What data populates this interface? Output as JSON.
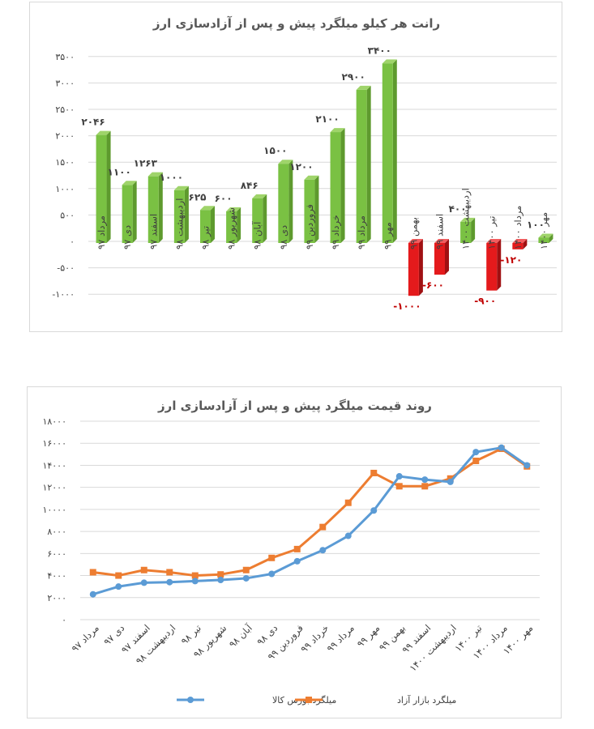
{
  "chart_data": [
    {
      "type": "bar",
      "title": "رانت هر کیلو میلگرد پیش و پس از آزادسازی ارز",
      "categories": [
        "مرداد ۹۷",
        "دی ۹۷",
        "اسفند ۹۷",
        "اردیبهشت ۹۸",
        "تیر ۹۸",
        "شهریور ۹۸",
        "آبان ۹۸",
        "دی ۹۸",
        "فروردین ۹۹",
        "خرداد ۹۹",
        "مرداد ۹۹",
        "مهر ۹۹",
        "بهمن ۹۹",
        "اسفند ۹۹",
        "اردیبهشت ۱۴۰۰",
        "تیر ۱۴۰۰",
        "مرداد ۱۴۰۰",
        "مهر ۱۴۰۰"
      ],
      "values": [
        2046,
        1100,
        1263,
        1000,
        625,
        600,
        846,
        1500,
        1200,
        2100,
        2900,
        3400,
        -1000,
        -600,
        400,
        -900,
        -120,
        100
      ],
      "value_labels": [
        "۲۰۴۶",
        "۱۱۰۰",
        "۱۲۶۳",
        "۱۰۰۰",
        "۶۲۵",
        "۶۰۰",
        "۸۴۶",
        "۱۵۰۰",
        "۱۲۰۰",
        "۲۱۰۰",
        "۲۹۰۰",
        "۳۴۰۰",
        "-۱۰۰۰",
        "-۶۰۰",
        "۴۰۰",
        "-۹۰۰",
        "-۱۲۰",
        "۱۰۰"
      ],
      "ylim": [
        -1000,
        3500
      ],
      "yticks": [
        -1000,
        -500,
        0,
        500,
        1000,
        1500,
        2000,
        2500,
        3000,
        3500
      ],
      "ytick_labels": [
        "-۱۰۰۰",
        "-۵۰۰",
        "۰",
        "۵۰۰",
        "۱۰۰۰",
        "۱۵۰۰",
        "۲۰۰۰",
        "۲۵۰۰",
        "۳۰۰۰",
        "۳۵۰۰"
      ],
      "colors": {
        "positive": "#7ac143",
        "negative": "#e41a1c",
        "grid": "#d9d9d9"
      }
    },
    {
      "type": "line",
      "title": "روند قیمت میلگرد پیش و پس از آزادسازی ارز",
      "categories": [
        "مرداد ۹۷",
        "دی ۹۷",
        "اسفند ۹۷",
        "اردیبهشت ۹۸",
        "تیر ۹۸",
        "شهریور ۹۸",
        "آبان ۹۸",
        "دی ۹۸",
        "فروردین ۹۹",
        "خرداد ۹۹",
        "مرداد ۹۹",
        "مهر ۹۹",
        "بهمن ۹۹",
        "اسفند ۹۹",
        "اردیبهشت ۱۴۰۰",
        "تیر ۱۴۰۰",
        "مرداد ۱۴۰۰",
        "مهر ۱۴۰۰"
      ],
      "series": [
        {
          "name": "میلگرد بورس کالا",
          "color": "#5b9bd5",
          "values": [
            2300,
            3000,
            3350,
            3400,
            3500,
            3600,
            3750,
            4150,
            5300,
            6300,
            7600,
            9900,
            13000,
            12700,
            12500,
            15200,
            15600,
            14000
          ]
        },
        {
          "name": "میلگرد بازار آزاد",
          "color": "#ed7d31",
          "values": [
            4300,
            4000,
            4500,
            4300,
            4000,
            4100,
            4500,
            5600,
            6400,
            8400,
            10600,
            13300,
            12100,
            12100,
            12800,
            14400,
            15500,
            13900
          ]
        }
      ],
      "ylim": [
        0,
        18000
      ],
      "yticks": [
        0,
        2000,
        4000,
        6000,
        8000,
        10000,
        12000,
        14000,
        16000,
        18000
      ],
      "ytick_labels": [
        "۰",
        "۲۰۰۰",
        "۴۰۰۰",
        "۶۰۰۰",
        "۸۰۰۰",
        "۱۰۰۰۰",
        "۱۲۰۰۰",
        "۱۴۰۰۰",
        "۱۶۰۰۰",
        "۱۸۰۰۰"
      ],
      "legend": [
        "میلگرد بورس کالا",
        "میلگرد بازار آزاد"
      ],
      "grid_color": "#d9d9d9"
    }
  ]
}
